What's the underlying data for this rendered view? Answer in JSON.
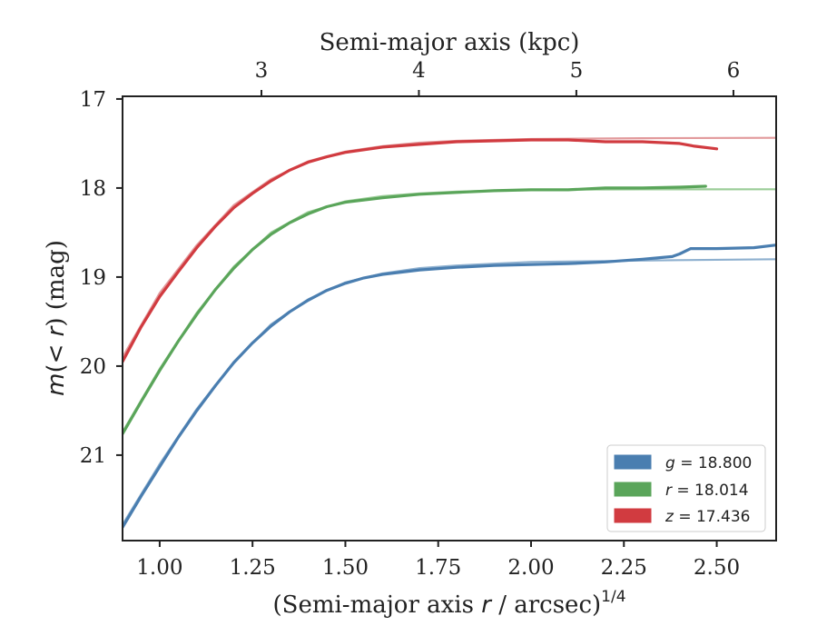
{
  "chart_data": {
    "type": "line",
    "x_axis": {
      "label_prefix": "(Semi-major axis ",
      "label_var": "r",
      "label_suffix": " / arcsec)",
      "label_exponent": "1/4",
      "range": [
        0.9,
        2.66
      ],
      "ticks": [
        1.0,
        1.25,
        1.5,
        1.75,
        2.0,
        2.25,
        2.5
      ],
      "tick_labels": [
        "1.00",
        "1.25",
        "1.50",
        "1.75",
        "2.00",
        "2.25",
        "2.50"
      ]
    },
    "top_axis": {
      "label": "Semi-major axis (kpc)",
      "ticks_at_bottom_x": [
        1.274,
        1.698,
        2.122,
        2.545
      ],
      "tick_labels": [
        "3",
        "4",
        "5",
        "6"
      ]
    },
    "y_axis": {
      "label_m": "m",
      "label_mid": "(< ",
      "label_r": "r",
      "label_end": ") (mag)",
      "range": [
        16.97,
        21.96
      ],
      "inverted": true,
      "ticks": [
        17,
        18,
        19,
        20,
        21
      ],
      "tick_labels": [
        "17",
        "18",
        "19",
        "20",
        "21"
      ]
    },
    "legend": {
      "placement": "lower-right"
    },
    "series": [
      {
        "name": "g",
        "label_band": "g",
        "label_value": " = 18.800",
        "color": "#4a7eb0",
        "model_color": "#8eb0cf",
        "data": [
          [
            0.9,
            21.81
          ],
          [
            0.95,
            21.46
          ],
          [
            1.0,
            21.13
          ],
          [
            1.05,
            20.8
          ],
          [
            1.1,
            20.5
          ],
          [
            1.15,
            20.22
          ],
          [
            1.2,
            19.96
          ],
          [
            1.25,
            19.74
          ],
          [
            1.3,
            19.55
          ],
          [
            1.35,
            19.39
          ],
          [
            1.4,
            19.26
          ],
          [
            1.45,
            19.15
          ],
          [
            1.5,
            19.07
          ],
          [
            1.55,
            19.01
          ],
          [
            1.6,
            18.97
          ],
          [
            1.7,
            18.92
          ],
          [
            1.8,
            18.89
          ],
          [
            1.9,
            18.87
          ],
          [
            2.0,
            18.86
          ],
          [
            2.1,
            18.85
          ],
          [
            2.2,
            18.83
          ],
          [
            2.3,
            18.8
          ],
          [
            2.38,
            18.77
          ],
          [
            2.4,
            18.74
          ],
          [
            2.43,
            18.68
          ],
          [
            2.5,
            18.68
          ],
          [
            2.6,
            18.67
          ],
          [
            2.66,
            18.64
          ]
        ],
        "model": [
          [
            0.9,
            21.78
          ],
          [
            1.0,
            21.1
          ],
          [
            1.1,
            20.48
          ],
          [
            1.2,
            19.95
          ],
          [
            1.3,
            19.53
          ],
          [
            1.4,
            19.25
          ],
          [
            1.5,
            19.06
          ],
          [
            1.6,
            18.96
          ],
          [
            1.7,
            18.9
          ],
          [
            1.8,
            18.87
          ],
          [
            1.9,
            18.85
          ],
          [
            2.0,
            18.83
          ],
          [
            2.2,
            18.82
          ],
          [
            2.4,
            18.81
          ],
          [
            2.66,
            18.8
          ]
        ]
      },
      {
        "name": "r",
        "label_band": "r",
        "label_value": " = 18.014",
        "color": "#5aa55a",
        "model_color": "#9ccd98",
        "data": [
          [
            0.9,
            20.76
          ],
          [
            0.95,
            20.4
          ],
          [
            1.0,
            20.05
          ],
          [
            1.05,
            19.72
          ],
          [
            1.1,
            19.42
          ],
          [
            1.15,
            19.14
          ],
          [
            1.2,
            18.9
          ],
          [
            1.25,
            18.69
          ],
          [
            1.3,
            18.52
          ],
          [
            1.35,
            18.39
          ],
          [
            1.4,
            18.29
          ],
          [
            1.45,
            18.21
          ],
          [
            1.5,
            18.16
          ],
          [
            1.6,
            18.11
          ],
          [
            1.7,
            18.07
          ],
          [
            1.8,
            18.05
          ],
          [
            1.9,
            18.03
          ],
          [
            2.0,
            18.02
          ],
          [
            2.1,
            18.02
          ],
          [
            2.2,
            18.0
          ],
          [
            2.3,
            18.0
          ],
          [
            2.4,
            17.99
          ],
          [
            2.47,
            17.98
          ]
        ],
        "model": [
          [
            0.9,
            20.74
          ],
          [
            1.0,
            20.03
          ],
          [
            1.1,
            19.4
          ],
          [
            1.2,
            18.88
          ],
          [
            1.3,
            18.5
          ],
          [
            1.4,
            18.27
          ],
          [
            1.5,
            18.15
          ],
          [
            1.6,
            18.09
          ],
          [
            1.7,
            18.06
          ],
          [
            1.8,
            18.04
          ],
          [
            2.0,
            18.02
          ],
          [
            2.3,
            18.015
          ],
          [
            2.66,
            18.014
          ]
        ]
      },
      {
        "name": "z",
        "label_band": "z",
        "label_value": " = 17.436",
        "color": "#d13b40",
        "model_color": "#e29a9c",
        "data": [
          [
            0.9,
            19.95
          ],
          [
            0.95,
            19.56
          ],
          [
            1.0,
            19.22
          ],
          [
            1.05,
            18.94
          ],
          [
            1.1,
            18.67
          ],
          [
            1.15,
            18.43
          ],
          [
            1.2,
            18.22
          ],
          [
            1.25,
            18.06
          ],
          [
            1.3,
            17.92
          ],
          [
            1.35,
            17.8
          ],
          [
            1.4,
            17.71
          ],
          [
            1.45,
            17.65
          ],
          [
            1.5,
            17.6
          ],
          [
            1.6,
            17.54
          ],
          [
            1.7,
            17.51
          ],
          [
            1.8,
            17.48
          ],
          [
            1.9,
            17.47
          ],
          [
            2.0,
            17.46
          ],
          [
            2.1,
            17.46
          ],
          [
            2.2,
            17.48
          ],
          [
            2.3,
            17.48
          ],
          [
            2.4,
            17.5
          ],
          [
            2.44,
            17.53
          ],
          [
            2.5,
            17.56
          ]
        ],
        "model": [
          [
            0.9,
            19.9
          ],
          [
            1.0,
            19.18
          ],
          [
            1.1,
            18.64
          ],
          [
            1.2,
            18.19
          ],
          [
            1.3,
            17.9
          ],
          [
            1.4,
            17.7
          ],
          [
            1.5,
            17.59
          ],
          [
            1.6,
            17.53
          ],
          [
            1.7,
            17.49
          ],
          [
            1.8,
            17.47
          ],
          [
            2.0,
            17.45
          ],
          [
            2.3,
            17.44
          ],
          [
            2.66,
            17.436
          ]
        ]
      }
    ]
  }
}
